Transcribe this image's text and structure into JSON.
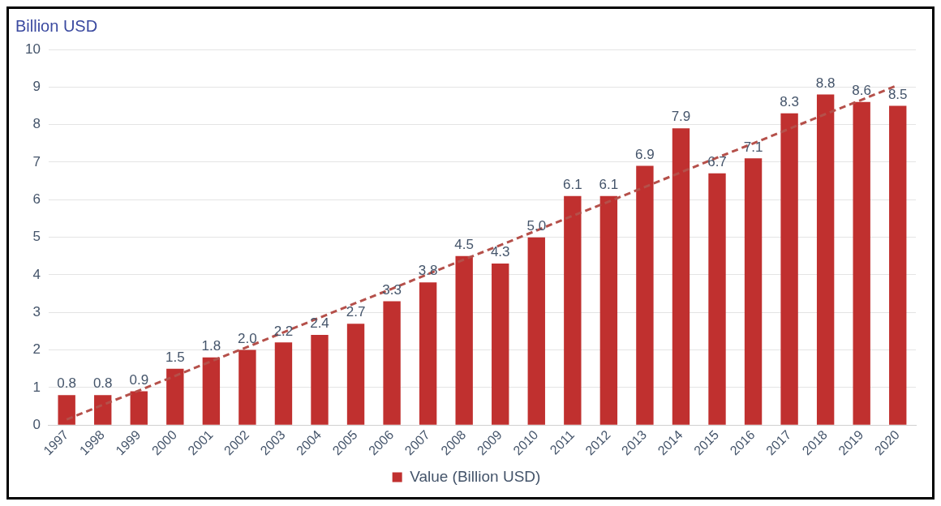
{
  "chart_data": {
    "type": "bar",
    "ylabel": "Billion USD",
    "categories": [
      "1997",
      "1998",
      "1999",
      "2000",
      "2001",
      "2002",
      "2003",
      "2004",
      "2005",
      "2006",
      "2007",
      "2008",
      "2009",
      "2010",
      "2011",
      "2012",
      "2013",
      "2014",
      "2015",
      "2016",
      "2017",
      "2018",
      "2019",
      "2020"
    ],
    "series": [
      {
        "name": "Value (Billion USD)",
        "color": "#c0302f",
        "values": [
          0.8,
          0.8,
          0.9,
          1.5,
          1.8,
          2.0,
          2.2,
          2.4,
          2.7,
          3.3,
          3.8,
          4.5,
          4.3,
          5.0,
          6.1,
          6.1,
          6.9,
          7.9,
          6.7,
          7.1,
          8.3,
          8.8,
          8.6,
          8.5
        ],
        "value_labels": [
          "0.8",
          "0.8",
          "0.9",
          "1.5",
          "1.8",
          "2.0",
          "2.2",
          "2.4",
          "2.7",
          "3.3",
          "3.8",
          "4.5",
          "4.3",
          "5.0",
          "6.1",
          "6.1",
          "6.9",
          "7.9",
          "6.7",
          "7.1",
          "8.3",
          "8.8",
          "8.6",
          "8.5"
        ]
      },
      {
        "type": "line",
        "color": "#b5504a",
        "line_style": "dashed",
        "marker": "none",
        "values": [
          0.15,
          0.54,
          0.92,
          1.31,
          1.7,
          2.08,
          2.47,
          2.86,
          3.25,
          3.63,
          4.02,
          4.41,
          4.79,
          5.18,
          5.57,
          5.95,
          6.34,
          6.73,
          7.12,
          7.5,
          7.89,
          8.28,
          8.66,
          9.05
        ]
      }
    ],
    "ylim": [
      0,
      10
    ],
    "yticks": [
      0,
      1,
      2,
      3,
      4,
      5,
      6,
      7,
      8,
      9,
      10
    ],
    "grid": "y",
    "legend": "bottom"
  }
}
